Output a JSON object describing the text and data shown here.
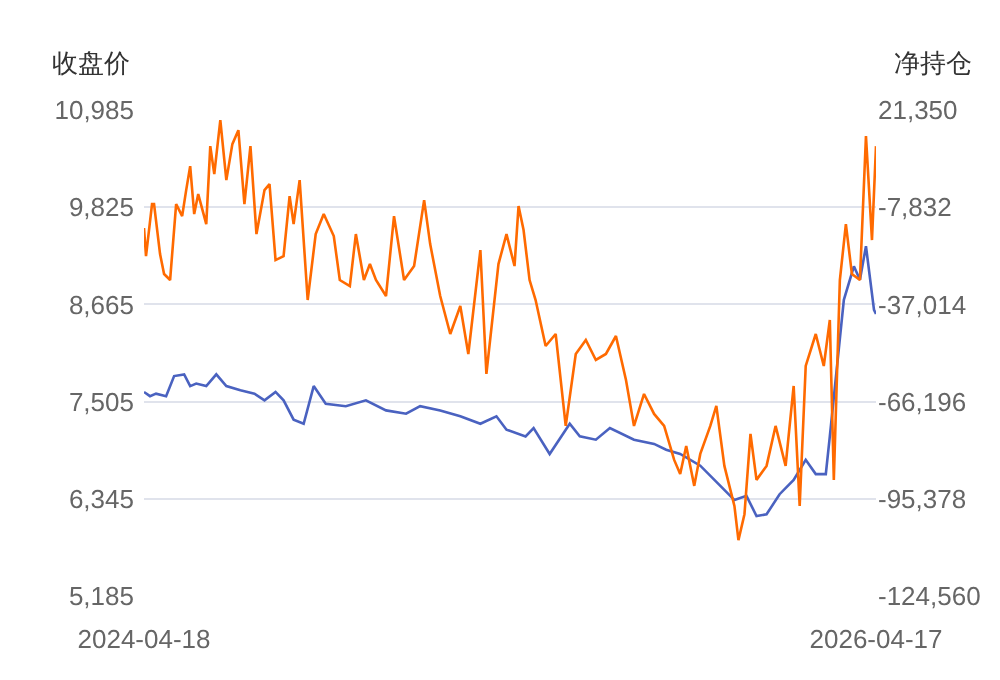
{
  "chart_data": {
    "type": "line",
    "ylabel": "收盘价",
    "y2label": "净持仓",
    "xlim": [
      "2024-04-18",
      "2026-04-17"
    ],
    "xticks": [
      "2024-04-18",
      "2026-04-17"
    ],
    "ylim": [
      5185,
      10985
    ],
    "yticks": [
      {
        "value": 5185,
        "label": "5,185"
      },
      {
        "value": 6345,
        "label": "6,345"
      },
      {
        "value": 7505,
        "label": "7,505"
      },
      {
        "value": 8665,
        "label": "8,665"
      },
      {
        "value": 9825,
        "label": "9,825"
      },
      {
        "value": 10985,
        "label": "10,985"
      }
    ],
    "y2lim": [
      -124560,
      21350
    ],
    "y2ticks": [
      {
        "value": -124560,
        "label": "-124,560"
      },
      {
        "value": -95378,
        "label": "-95,378"
      },
      {
        "value": -66196,
        "label": "-66,196"
      },
      {
        "value": -37014,
        "label": "-37,014"
      },
      {
        "value": -7832,
        "label": "-7,832"
      },
      {
        "value": 21350,
        "label": "21,350"
      }
    ],
    "grid": "y",
    "series": [
      {
        "color": "#4a62c0",
        "x": [
          "2024-04-18",
          "2024-04-24",
          "2024-04-30",
          "2024-05-10",
          "2024-05-18",
          "2024-05-28",
          "2024-06-03",
          "2024-06-09",
          "2024-06-19",
          "2024-06-29",
          "2024-07-09",
          "2024-07-23",
          "2024-08-06",
          "2024-08-16",
          "2024-08-27",
          "2024-09-04",
          "2024-09-14",
          "2024-09-24",
          "2024-10-04",
          "2024-10-16",
          "2024-11-05",
          "2024-11-25",
          "2024-12-15",
          "2025-01-04",
          "2025-01-18",
          "2025-02-07",
          "2025-02-27",
          "2025-03-19",
          "2025-04-04",
          "2025-04-14",
          "2025-05-03",
          "2025-05-11",
          "2025-05-27",
          "2025-06-16",
          "2025-06-26",
          "2025-07-12",
          "2025-07-26",
          "2025-08-19",
          "2025-09-08",
          "2025-09-20",
          "2025-10-04",
          "2025-10-24",
          "2025-11-13",
          "2025-11-27",
          "2025-12-09",
          "2025-12-19",
          "2025-12-29",
          "2026-01-11",
          "2026-01-25",
          "2026-02-06",
          "2026-02-16",
          "2026-02-26",
          "2026-03-02",
          "2026-03-16",
          "2026-03-26",
          "2026-04-01",
          "2026-04-07",
          "2026-04-15",
          "2026-04-17"
        ],
        "values": [
          7620,
          7570,
          7600,
          7570,
          7810,
          7830,
          7690,
          7720,
          7690,
          7830,
          7690,
          7640,
          7600,
          7520,
          7620,
          7520,
          7290,
          7240,
          7690,
          7480,
          7450,
          7520,
          7400,
          7360,
          7450,
          7400,
          7330,
          7240,
          7330,
          7170,
          7090,
          7190,
          6880,
          7240,
          7090,
          7050,
          7190,
          7050,
          7000,
          6930,
          6880,
          6740,
          6500,
          6330,
          6380,
          6140,
          6160,
          6400,
          6570,
          6810,
          6640,
          6640,
          7090,
          8720,
          9120,
          8960,
          9360,
          8600,
          8550
        ]
      },
      {
        "color": "#ff6a00",
        "axis": "y2",
        "x": [
          "2024-04-18",
          "2024-04-20",
          "2024-04-26",
          "2024-04-28",
          "2024-05-04",
          "2024-05-08",
          "2024-05-14",
          "2024-05-20",
          "2024-05-26",
          "2024-05-30",
          "2024-06-03",
          "2024-06-07",
          "2024-06-11",
          "2024-06-19",
          "2024-06-23",
          "2024-06-27",
          "2024-07-03",
          "2024-07-09",
          "2024-07-15",
          "2024-07-21",
          "2024-07-27",
          "2024-08-02",
          "2024-08-08",
          "2024-08-16",
          "2024-08-21",
          "2024-08-27",
          "2024-09-04",
          "2024-09-10",
          "2024-09-14",
          "2024-09-20",
          "2024-09-28",
          "2024-10-06",
          "2024-10-14",
          "2024-10-24",
          "2024-10-30",
          "2024-11-09",
          "2024-11-15",
          "2024-11-23",
          "2024-11-29",
          "2024-12-05",
          "2024-12-15",
          "2024-12-23",
          "2025-01-02",
          "2025-01-12",
          "2025-01-22",
          "2025-01-28",
          "2025-02-07",
          "2025-02-17",
          "2025-02-27",
          "2025-03-07",
          "2025-03-19",
          "2025-03-25",
          "2025-04-06",
          "2025-04-14",
          "2025-04-22",
          "2025-04-26",
          "2025-05-01",
          "2025-05-07",
          "2025-05-13",
          "2025-05-23",
          "2025-06-02",
          "2025-06-12",
          "2025-06-22",
          "2025-07-02",
          "2025-07-12",
          "2025-07-22",
          "2025-08-01",
          "2025-08-11",
          "2025-08-19",
          "2025-08-29",
          "2025-09-08",
          "2025-09-18",
          "2025-09-28",
          "2025-10-04",
          "2025-10-10",
          "2025-10-18",
          "2025-10-24",
          "2025-11-03",
          "2025-11-09",
          "2025-11-17",
          "2025-11-27",
          "2025-12-01",
          "2025-12-07",
          "2025-12-13",
          "2025-12-19",
          "2025-12-29",
          "2026-01-07",
          "2026-01-17",
          "2026-01-25",
          "2026-01-31",
          "2026-02-06",
          "2026-02-16",
          "2026-02-24",
          "2026-03-02",
          "2026-03-06",
          "2026-03-12",
          "2026-03-18",
          "2026-03-24",
          "2026-04-01",
          "2026-04-07",
          "2026-04-13",
          "2026-04-17"
        ],
        "values": [
          -14100,
          -22500,
          -6900,
          -6900,
          -21900,
          -27900,
          -29700,
          -6900,
          -10500,
          -2700,
          4500,
          -9900,
          -3900,
          -12900,
          10500,
          2100,
          18300,
          300,
          11100,
          15300,
          -6900,
          10500,
          -15900,
          -2700,
          -900,
          -23700,
          -22500,
          -4500,
          -12900,
          300,
          -35700,
          -15900,
          -9900,
          -16500,
          -29700,
          -31500,
          -15900,
          -29700,
          -24900,
          -29700,
          -34500,
          -10500,
          -29700,
          -25500,
          -5700,
          -18900,
          -34500,
          -45900,
          -37500,
          -51900,
          -20700,
          -57900,
          -24900,
          -15900,
          -25500,
          -7500,
          -14700,
          -29700,
          -35700,
          -49500,
          -45900,
          -73500,
          -51900,
          -47700,
          -53700,
          -51900,
          -46500,
          -59700,
          -73500,
          -63900,
          -69900,
          -73500,
          -83700,
          -87900,
          -79500,
          -91500,
          -81900,
          -73500,
          -67500,
          -85500,
          -97500,
          -107800,
          -100000,
          -75900,
          -89700,
          -85500,
          -73500,
          -85500,
          -61500,
          -97500,
          -55500,
          -45900,
          -55500,
          -41700,
          -89700,
          -29700,
          -12900,
          -27900,
          -29700,
          13500,
          -17700,
          10500
        ]
      }
    ]
  }
}
